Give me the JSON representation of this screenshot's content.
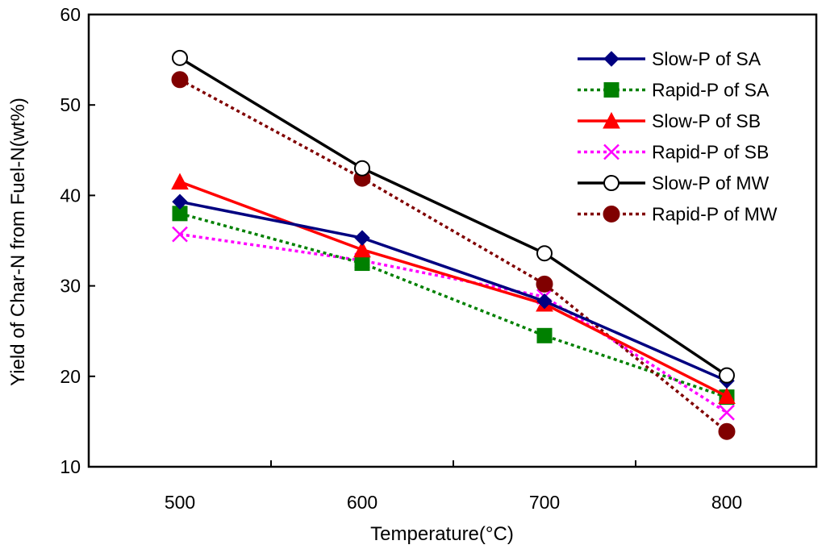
{
  "chart_data": {
    "type": "line",
    "title": "",
    "xlabel": "Temperature(°C)",
    "ylabel": "Yield of Char-N from Fuel-N(wt%)",
    "x": [
      500,
      600,
      700,
      800
    ],
    "x_tick_labels": [
      "500",
      "600",
      "700",
      "800"
    ],
    "ylim": [
      10,
      60
    ],
    "y_ticks": [
      10,
      20,
      30,
      40,
      50,
      60
    ],
    "y_tick_labels": [
      "10",
      "20",
      "30",
      "40",
      "50",
      "60"
    ],
    "grid": false,
    "legend_position": "top-right",
    "series": [
      {
        "name": "Slow-P of SA",
        "values": [
          39.3,
          35.3,
          28.3,
          19.5
        ],
        "color": "#000080",
        "dash": "solid",
        "marker": "diamond"
      },
      {
        "name": "Rapid-P of SA",
        "values": [
          38.0,
          32.5,
          24.5,
          17.7
        ],
        "color": "#008000",
        "dash": "dotted",
        "marker": "square"
      },
      {
        "name": "Slow-P of SB",
        "values": [
          41.5,
          34.0,
          28.0,
          17.8
        ],
        "color": "#ff0000",
        "dash": "solid",
        "marker": "triangle"
      },
      {
        "name": "Rapid-P of SB",
        "values": [
          35.7,
          32.8,
          28.8,
          16.0
        ],
        "color": "#ff00ff",
        "dash": "dotted",
        "marker": "x"
      },
      {
        "name": "Slow-P of MW",
        "values": [
          55.2,
          43.0,
          33.6,
          20.1
        ],
        "color": "#000000",
        "dash": "solid",
        "marker": "circle-open"
      },
      {
        "name": "Rapid-P of MW",
        "values": [
          52.8,
          41.9,
          30.2,
          13.9
        ],
        "color": "#800000",
        "dash": "dotted",
        "marker": "circle-filled"
      }
    ]
  }
}
